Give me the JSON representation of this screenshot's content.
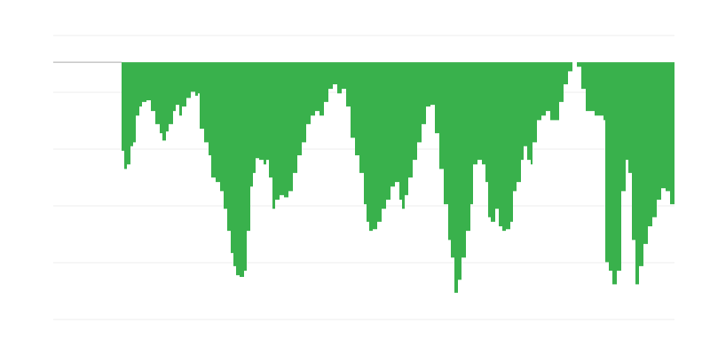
{
  "chart_data": {
    "type": "area",
    "title": "",
    "xlabel": "",
    "ylabel": "",
    "grid": true,
    "legend": "none",
    "colors": {
      "area": "#39b14c",
      "baseline": "#aaaaaa",
      "grid": "#eeeeee"
    },
    "xlim": [
      -77,
      623
    ],
    "ylim": [
      -45.3,
      4.7
    ],
    "grid_step": 10,
    "x": [
      0,
      3,
      6,
      10,
      13,
      16,
      20,
      23,
      28,
      33,
      38,
      43,
      46,
      50,
      53,
      58,
      61,
      65,
      68,
      73,
      78,
      83,
      86,
      88,
      93,
      98,
      101,
      106,
      111,
      115,
      119,
      123,
      126,
      129,
      133,
      138,
      141,
      145,
      148,
      151,
      155,
      160,
      163,
      166,
      170,
      173,
      178,
      183,
      188,
      193,
      198,
      203,
      208,
      213,
      218,
      223,
      228,
      233,
      238,
      243,
      248,
      253,
      258,
      263,
      268,
      273,
      276,
      279,
      283,
      288,
      293,
      298,
      303,
      308,
      313,
      316,
      319,
      323,
      328,
      333,
      338,
      343,
      348,
      353,
      358,
      363,
      368,
      371,
      375,
      379,
      383,
      388,
      393,
      396,
      401,
      406,
      410,
      413,
      416,
      421,
      425,
      429,
      433,
      438,
      441,
      445,
      450,
      453,
      457,
      461,
      463,
      468,
      473,
      478,
      483,
      488,
      493,
      498,
      503,
      508,
      513,
      518,
      523,
      528,
      533,
      538,
      543,
      545,
      549,
      553,
      558,
      563,
      568,
      571,
      575,
      579,
      583,
      588,
      593,
      598,
      603,
      608,
      613,
      618,
      623
    ],
    "values": [
      -15.6,
      -18.8,
      -18.0,
      -14.8,
      -14.1,
      -9.4,
      -7.8,
      -7.0,
      -6.7,
      -8.6,
      -10.9,
      -12.5,
      -13.8,
      -12.2,
      -10.9,
      -8.6,
      -7.5,
      -9.4,
      -7.8,
      -6.3,
      -5.2,
      -5.9,
      -5.5,
      -11.7,
      -14.1,
      -16.4,
      -20.3,
      -21.1,
      -22.7,
      -25.8,
      -29.7,
      -33.6,
      -35.9,
      -37.5,
      -37.8,
      -36.7,
      -29.7,
      -21.9,
      -19.5,
      -16.9,
      -17.2,
      -18.0,
      -17.2,
      -20.3,
      -25.8,
      -24.2,
      -23.4,
      -23.8,
      -22.7,
      -19.5,
      -16.4,
      -14.1,
      -10.9,
      -9.4,
      -8.6,
      -9.4,
      -7.0,
      -4.7,
      -3.9,
      -5.5,
      -4.7,
      -7.8,
      -13.3,
      -16.4,
      -19.5,
      -25.0,
      -28.1,
      -29.7,
      -29.4,
      -28.1,
      -25.8,
      -24.2,
      -21.9,
      -21.1,
      -24.2,
      -25.8,
      -23.4,
      -20.3,
      -17.2,
      -14.1,
      -10.9,
      -7.8,
      -7.5,
      -12.5,
      -18.8,
      -25.0,
      -31.3,
      -34.4,
      -40.6,
      -38.3,
      -34.4,
      -29.7,
      -25.0,
      -18.0,
      -17.2,
      -18.0,
      -21.1,
      -27.3,
      -28.1,
      -25.8,
      -28.9,
      -29.7,
      -29.4,
      -28.1,
      -22.7,
      -21.1,
      -17.2,
      -14.8,
      -17.2,
      -18.0,
      -14.1,
      -10.2,
      -9.4,
      -8.6,
      -10.2,
      -10.2,
      -7.0,
      -3.9,
      -1.6,
      0,
      -0.8,
      -4.7,
      -8.6,
      -8.6,
      -9.4,
      -9.4,
      -10.2,
      -35.2,
      -36.7,
      -39.1,
      -36.7,
      -22.7,
      -17.2,
      -19.5,
      -31.3,
      -39.1,
      -35.9,
      -32.0,
      -28.9,
      -27.3,
      -24.2,
      -22.2,
      -22.7,
      -25.0,
      -25.8
    ]
  }
}
